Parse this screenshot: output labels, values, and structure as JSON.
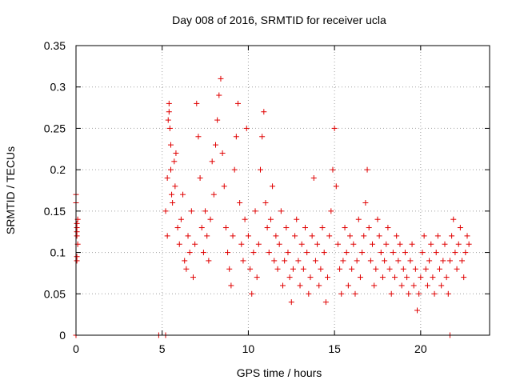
{
  "chart_data": {
    "type": "scatter",
    "title": "Day 008 of 2016, SRMTID for receiver ucla",
    "xlabel": "GPS time / hours",
    "ylabel": "SRMTID / TECUs",
    "xlim": [
      0,
      24
    ],
    "ylim": [
      0,
      0.35
    ],
    "x_ticks": [
      0,
      5,
      10,
      15,
      20
    ],
    "y_ticks": [
      0,
      0.05,
      0.1,
      0.15,
      0.2,
      0.25,
      0.3,
      0.35
    ],
    "x_tick_labels": [
      "0",
      "5",
      "10",
      "15",
      "20"
    ],
    "y_tick_labels": [
      "0",
      "0.05",
      "0.1",
      "0.15",
      "0.2",
      "0.25",
      "0.3",
      "0.35"
    ],
    "grid": true,
    "marker": "+",
    "color": "#e00000",
    "series": [
      {
        "points": [
          [
            0.0,
            0.17
          ],
          [
            0.0,
            0.16
          ],
          [
            0.05,
            0.135
          ],
          [
            0.05,
            0.13
          ],
          [
            0.05,
            0.125
          ],
          [
            0.05,
            0.12
          ],
          [
            0.1,
            0.14
          ],
          [
            0.1,
            0.11
          ],
          [
            0.05,
            0.095
          ],
          [
            0.05,
            0.09
          ],
          [
            0.0,
            0.0
          ],
          [
            4.8,
            0.0
          ],
          [
            5.2,
            0.0
          ],
          [
            21.7,
            0.0
          ],
          [
            5.2,
            0.15
          ],
          [
            5.3,
            0.12
          ],
          [
            5.3,
            0.19
          ],
          [
            5.35,
            0.26
          ],
          [
            5.4,
            0.27
          ],
          [
            5.4,
            0.28
          ],
          [
            5.45,
            0.25
          ],
          [
            5.5,
            0.23
          ],
          [
            5.5,
            0.2
          ],
          [
            5.55,
            0.17
          ],
          [
            5.6,
            0.16
          ],
          [
            5.7,
            0.21
          ],
          [
            5.75,
            0.18
          ],
          [
            5.8,
            0.22
          ],
          [
            5.9,
            0.13
          ],
          [
            6.0,
            0.11
          ],
          [
            6.1,
            0.14
          ],
          [
            6.2,
            0.17
          ],
          [
            6.3,
            0.09
          ],
          [
            6.4,
            0.08
          ],
          [
            6.5,
            0.12
          ],
          [
            6.6,
            0.1
          ],
          [
            6.7,
            0.15
          ],
          [
            6.8,
            0.07
          ],
          [
            6.9,
            0.11
          ],
          [
            7.0,
            0.28
          ],
          [
            7.1,
            0.24
          ],
          [
            7.2,
            0.19
          ],
          [
            7.3,
            0.13
          ],
          [
            7.4,
            0.1
          ],
          [
            7.5,
            0.15
          ],
          [
            7.6,
            0.12
          ],
          [
            7.7,
            0.09
          ],
          [
            7.8,
            0.14
          ],
          [
            7.9,
            0.21
          ],
          [
            8.0,
            0.17
          ],
          [
            8.1,
            0.23
          ],
          [
            8.2,
            0.26
          ],
          [
            8.3,
            0.29
          ],
          [
            8.4,
            0.31
          ],
          [
            8.5,
            0.22
          ],
          [
            8.6,
            0.18
          ],
          [
            8.7,
            0.13
          ],
          [
            8.8,
            0.1
          ],
          [
            8.9,
            0.08
          ],
          [
            9.0,
            0.06
          ],
          [
            9.1,
            0.12
          ],
          [
            9.2,
            0.2
          ],
          [
            9.3,
            0.24
          ],
          [
            9.4,
            0.28
          ],
          [
            9.5,
            0.16
          ],
          [
            9.6,
            0.11
          ],
          [
            9.7,
            0.09
          ],
          [
            9.8,
            0.14
          ],
          [
            9.9,
            0.25
          ],
          [
            10.0,
            0.12
          ],
          [
            10.1,
            0.08
          ],
          [
            10.2,
            0.05
          ],
          [
            10.3,
            0.1
          ],
          [
            10.4,
            0.15
          ],
          [
            10.5,
            0.07
          ],
          [
            10.6,
            0.11
          ],
          [
            10.7,
            0.2
          ],
          [
            10.8,
            0.24
          ],
          [
            10.9,
            0.27
          ],
          [
            11.0,
            0.16
          ],
          [
            11.1,
            0.13
          ],
          [
            11.2,
            0.1
          ],
          [
            11.3,
            0.14
          ],
          [
            11.4,
            0.18
          ],
          [
            11.5,
            0.09
          ],
          [
            11.6,
            0.12
          ],
          [
            11.7,
            0.08
          ],
          [
            11.8,
            0.11
          ],
          [
            11.9,
            0.15
          ],
          [
            12.0,
            0.06
          ],
          [
            12.1,
            0.09
          ],
          [
            12.2,
            0.13
          ],
          [
            12.3,
            0.1
          ],
          [
            12.4,
            0.07
          ],
          [
            12.5,
            0.04
          ],
          [
            12.6,
            0.08
          ],
          [
            12.7,
            0.12
          ],
          [
            12.8,
            0.14
          ],
          [
            12.9,
            0.09
          ],
          [
            13.0,
            0.06
          ],
          [
            13.1,
            0.11
          ],
          [
            13.2,
            0.08
          ],
          [
            13.3,
            0.13
          ],
          [
            13.4,
            0.1
          ],
          [
            13.5,
            0.05
          ],
          [
            13.6,
            0.07
          ],
          [
            13.7,
            0.12
          ],
          [
            13.8,
            0.19
          ],
          [
            13.9,
            0.09
          ],
          [
            14.0,
            0.11
          ],
          [
            14.1,
            0.06
          ],
          [
            14.2,
            0.08
          ],
          [
            14.3,
            0.13
          ],
          [
            14.4,
            0.1
          ],
          [
            14.5,
            0.04
          ],
          [
            14.6,
            0.07
          ],
          [
            14.7,
            0.12
          ],
          [
            14.8,
            0.15
          ],
          [
            14.9,
            0.2
          ],
          [
            15.0,
            0.25
          ],
          [
            15.1,
            0.18
          ],
          [
            15.2,
            0.11
          ],
          [
            15.3,
            0.08
          ],
          [
            15.4,
            0.05
          ],
          [
            15.5,
            0.09
          ],
          [
            15.6,
            0.13
          ],
          [
            15.7,
            0.1
          ],
          [
            15.8,
            0.06
          ],
          [
            15.9,
            0.12
          ],
          [
            16.0,
            0.08
          ],
          [
            16.1,
            0.11
          ],
          [
            16.2,
            0.05
          ],
          [
            16.3,
            0.09
          ],
          [
            16.4,
            0.14
          ],
          [
            16.5,
            0.07
          ],
          [
            16.6,
            0.1
          ],
          [
            16.7,
            0.12
          ],
          [
            16.8,
            0.16
          ],
          [
            16.9,
            0.2
          ],
          [
            17.0,
            0.13
          ],
          [
            17.1,
            0.09
          ],
          [
            17.2,
            0.11
          ],
          [
            17.3,
            0.06
          ],
          [
            17.4,
            0.08
          ],
          [
            17.5,
            0.14
          ],
          [
            17.6,
            0.12
          ],
          [
            17.7,
            0.1
          ],
          [
            17.8,
            0.07
          ],
          [
            17.9,
            0.09
          ],
          [
            18.0,
            0.11
          ],
          [
            18.1,
            0.13
          ],
          [
            18.2,
            0.08
          ],
          [
            18.3,
            0.05
          ],
          [
            18.4,
            0.1
          ],
          [
            18.5,
            0.07
          ],
          [
            18.6,
            0.12
          ],
          [
            18.7,
            0.09
          ],
          [
            18.8,
            0.11
          ],
          [
            18.9,
            0.06
          ],
          [
            19.0,
            0.08
          ],
          [
            19.1,
            0.1
          ],
          [
            19.2,
            0.07
          ],
          [
            19.3,
            0.05
          ],
          [
            19.4,
            0.09
          ],
          [
            19.5,
            0.11
          ],
          [
            19.6,
            0.06
          ],
          [
            19.7,
            0.08
          ],
          [
            19.8,
            0.03
          ],
          [
            19.9,
            0.05
          ],
          [
            20.0,
            0.07
          ],
          [
            20.1,
            0.1
          ],
          [
            20.2,
            0.12
          ],
          [
            20.3,
            0.08
          ],
          [
            20.4,
            0.06
          ],
          [
            20.5,
            0.09
          ],
          [
            20.6,
            0.11
          ],
          [
            20.7,
            0.07
          ],
          [
            20.8,
            0.05
          ],
          [
            20.9,
            0.1
          ],
          [
            21.0,
            0.12
          ],
          [
            21.1,
            0.08
          ],
          [
            21.2,
            0.06
          ],
          [
            21.3,
            0.09
          ],
          [
            21.4,
            0.11
          ],
          [
            21.5,
            0.07
          ],
          [
            21.6,
            0.05
          ],
          [
            21.7,
            0.09
          ],
          [
            21.8,
            0.12
          ],
          [
            21.9,
            0.14
          ],
          [
            22.0,
            0.1
          ],
          [
            22.1,
            0.08
          ],
          [
            22.2,
            0.11
          ],
          [
            22.3,
            0.13
          ],
          [
            22.4,
            0.09
          ],
          [
            22.5,
            0.07
          ],
          [
            22.6,
            0.1
          ],
          [
            22.7,
            0.12
          ],
          [
            22.8,
            0.11
          ]
        ]
      }
    ]
  }
}
